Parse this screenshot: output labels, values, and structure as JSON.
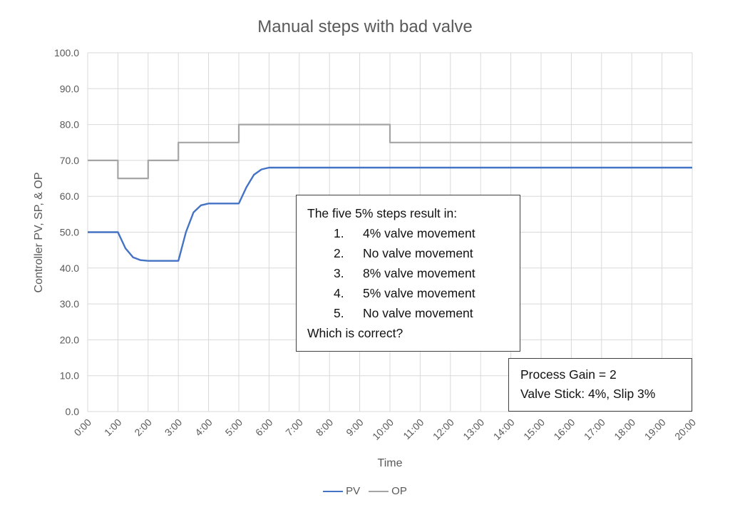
{
  "chart_data": {
    "type": "line",
    "title": "Manual steps with bad valve",
    "xlabel": "Time",
    "ylabel": "Controller PV, SP, & OP",
    "ylim": [
      0,
      100
    ],
    "yticks": [
      "0.0",
      "10.0",
      "20.0",
      "30.0",
      "40.0",
      "50.0",
      "60.0",
      "70.0",
      "80.0",
      "90.0",
      "100.0"
    ],
    "xticks": [
      "0:00",
      "1:00",
      "2:00",
      "3:00",
      "4:00",
      "5:00",
      "6:00",
      "7:00",
      "8:00",
      "9:00",
      "10:00",
      "11:00",
      "12:00",
      "13:00",
      "14:00",
      "15:00",
      "16:00",
      "17:00",
      "18:00",
      "19:00",
      "20:00"
    ],
    "xlim_minutes": [
      0,
      20
    ],
    "grid": true,
    "legend_position": "bottom",
    "series": [
      {
        "name": "PV",
        "color": "#4472C4",
        "x_minutes": [
          0,
          1,
          1.25,
          1.5,
          1.75,
          2,
          3,
          3.25,
          3.5,
          3.75,
          4,
          5,
          5.25,
          5.5,
          5.75,
          6,
          20
        ],
        "values": [
          50,
          50,
          45.5,
          43,
          42.2,
          42,
          42,
          50,
          55.5,
          57.5,
          58,
          58,
          62.5,
          66,
          67.5,
          68,
          68
        ]
      },
      {
        "name": "OP",
        "color": "#A5A5A5",
        "x_minutes": [
          0,
          1,
          1,
          2,
          2,
          3,
          3,
          5,
          5,
          10,
          10,
          20
        ],
        "values": [
          70,
          70,
          65,
          65,
          70,
          70,
          75,
          75,
          80,
          80,
          75,
          75
        ]
      }
    ],
    "annotations": [
      {
        "heading": "The five 5% steps result in:",
        "items": [
          {
            "num": "1.",
            "text": "4% valve movement"
          },
          {
            "num": "2.",
            "text": "No valve movement"
          },
          {
            "num": "3.",
            "text": "8% valve movement"
          },
          {
            "num": "4.",
            "text": "5% valve movement"
          },
          {
            "num": "5.",
            "text": "No valve movement"
          }
        ],
        "footer": "Which is correct?"
      },
      {
        "lines": [
          "Process Gain = 2",
          "Valve Stick: 4%, Slip 3%"
        ]
      }
    ]
  },
  "legend": [
    {
      "label": "PV",
      "color": "#4472C4"
    },
    {
      "label": "OP",
      "color": "#A5A5A5"
    }
  ]
}
